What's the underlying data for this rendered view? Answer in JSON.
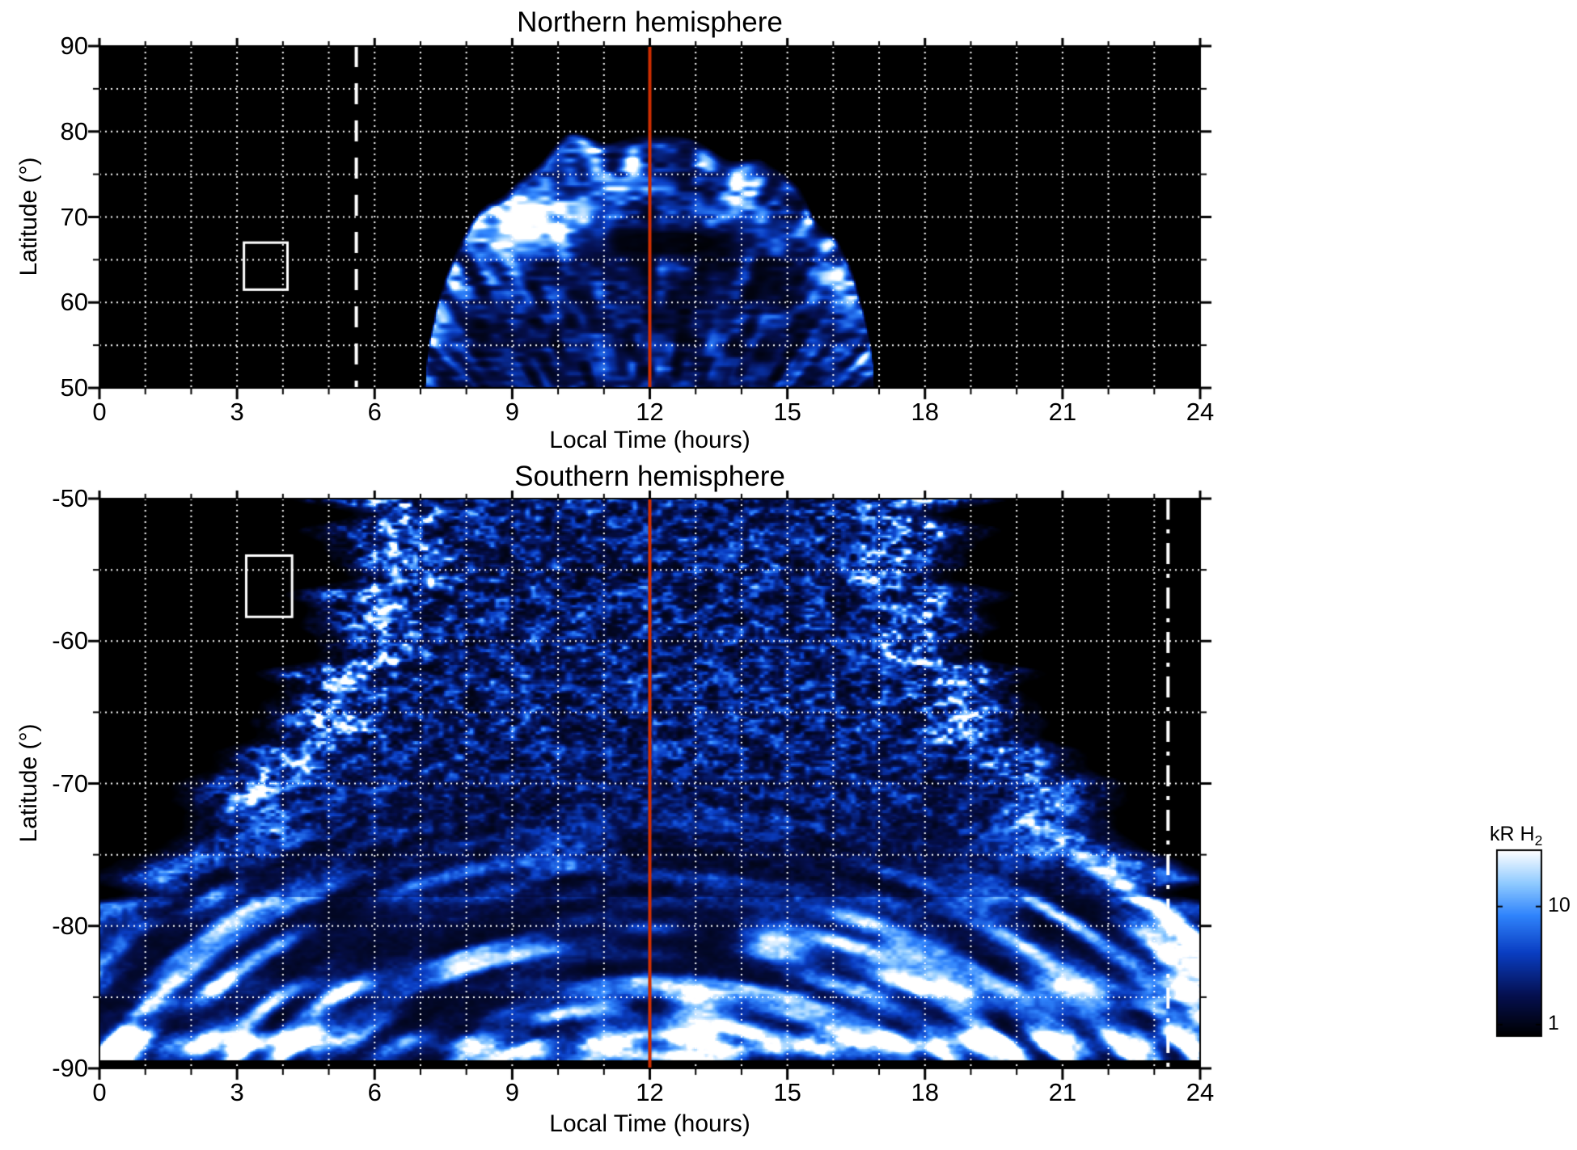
{
  "figure": {
    "background": "#ffffff",
    "text_color": "#000000"
  },
  "chart_data": {
    "type": "heatmap",
    "quantity": "H2 auroral emission brightness versus local time and latitude, northern and southern hemispheres",
    "units": "kR H2",
    "color_scale": {
      "type": "log",
      "min": 0.8,
      "max": 30,
      "bar_title_main": "kR H",
      "bar_title_sub": "2",
      "tick_labels": [
        "10",
        "1"
      ],
      "tick_values": [
        10,
        1
      ]
    },
    "colormap_stops": [
      {
        "at": 0.0,
        "rgb": [
          0,
          0,
          0
        ]
      },
      {
        "at": 0.22,
        "rgb": [
          5,
          16,
          80
        ]
      },
      {
        "at": 0.45,
        "rgb": [
          10,
          62,
          195
        ]
      },
      {
        "at": 0.65,
        "rgb": [
          48,
          132,
          252
        ]
      },
      {
        "at": 0.82,
        "rgb": [
          142,
          202,
          255
        ]
      },
      {
        "at": 1.0,
        "rgb": [
          255,
          255,
          255
        ]
      }
    ],
    "panels": [
      {
        "title": "Northern hemisphere",
        "xlabel": "Local Time (hours)",
        "ylabel": "Latitude (°)",
        "xlim": [
          0,
          24
        ],
        "ylim": [
          50,
          90
        ],
        "xticks": [
          0,
          3,
          6,
          9,
          12,
          15,
          18,
          21,
          24
        ],
        "yticks": [
          90,
          80,
          70,
          60,
          50
        ],
        "x_minor_step": 1,
        "y_minor_step": 5,
        "grid_color": "#ffffff",
        "annotations": {
          "noon_line": {
            "x": 12,
            "color": "#cf2e00",
            "style": "solid"
          },
          "white_line": {
            "x": 5.6,
            "color": "#ffffff",
            "style": "dashed"
          },
          "box": {
            "lt": [
              3.15,
              4.1
            ],
            "lat": [
              61.5,
              67.0
            ],
            "color": "#ffffff"
          }
        },
        "emission": {
          "description": "Dayside emission dome between ~07:12 and ~16:48 LT reaching ~80.5 deg at noon; very bright white patch near 09:24 LT / 69.5 deg; dark gap just duskward of noon near 67 deg; streaked speckled blue texture; black elsewhere.",
          "oval_center_lt": 12,
          "oval_halfwidth_h": 4.9,
          "oval_peak_lat": 80.5,
          "floor_lat": 50,
          "rim_sigma_deg": 6.5,
          "bright_patch": {
            "lt": 9.4,
            "lat": 69.5,
            "sig_lt": 1.15,
            "sig_lat": 3.4,
            "amp": 1.15
          },
          "dark_gap": {
            "lt": 12.4,
            "lat": 67.0,
            "sig_lt": 1.7,
            "sig_lat": 1.7,
            "amp": 0.55
          },
          "seed": 7
        }
      },
      {
        "title": "Southern hemisphere",
        "xlabel": "Local Time (hours)",
        "ylabel": "Latitude (°)",
        "xlim": [
          0,
          24
        ],
        "ylim": [
          -90,
          -50
        ],
        "xticks": [
          0,
          3,
          6,
          9,
          12,
          15,
          18,
          21,
          24
        ],
        "yticks": [
          -50,
          -60,
          -70,
          -80,
          -90
        ],
        "x_minor_step": 1,
        "y_minor_step": 5,
        "grid_color": "#ffffff",
        "annotations": {
          "noon_line": {
            "x": 12,
            "color": "#cf2e00",
            "style": "solid"
          },
          "white_line": {
            "x": 23.3,
            "color": "#ffffff",
            "style": "dash-dot"
          },
          "box": {
            "lt": [
              3.2,
              4.2
            ],
            "lat": [
              -54.0,
              -58.3
            ],
            "color": "#ffffff"
          }
        },
        "emission": {
          "description": "Emission wedge widening from ~04:40-19:20 LT at -50 deg to all local times poleward of ~-80 deg; bright curved bands ~1.8 h inside each edge (near 06:30 and 17:30 LT at upper latitudes); thin concentric bright arcs below -80 deg; bright white band near -88 deg; black below ~-89.4 deg and in the upper corners.",
          "wedge_halfwidth_at_50": 7.2,
          "wedge_halfwidth_growth": 6.0,
          "wedge_power": 2.0,
          "full_coverage_lat": -80,
          "edge_band_offset_h": 1.8,
          "edge_band_sigma_h": 0.7,
          "edge_band_amp": 0.5,
          "bright_band_lat": -88.2,
          "secondary_band_lat": -84.3,
          "polar_arc_center_lat": -102,
          "black_below_lat": -89.4,
          "seed": 21
        }
      }
    ]
  }
}
